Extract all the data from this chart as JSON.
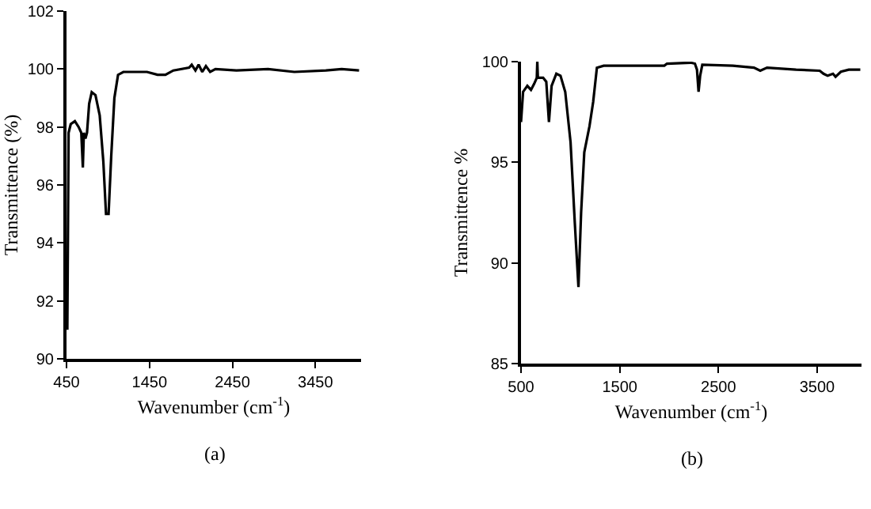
{
  "chart_data": [
    {
      "type": "line",
      "xlabel": "Wavenumber (cm$^{-1}$)",
      "ylabel": "Transmittence (%)",
      "annotations": [
        "(a)"
      ],
      "xlim": [
        450,
        4000
      ],
      "xticks": [
        450,
        1450,
        2450,
        3450
      ],
      "ylim": [
        90,
        102
      ],
      "yticks": [
        90,
        92,
        94,
        96,
        98,
        100,
        102
      ],
      "grid": false,
      "marker": "none",
      "line_style": "solid",
      "series": [
        {
          "color": "#000000",
          "x": [
            460,
            475,
            501,
            551,
            596,
            628,
            647,
            659,
            678,
            697,
            723,
            754,
            799,
            850,
            894,
            926,
            957,
            989,
            1027,
            1071,
            1135,
            1420,
            1547,
            1642,
            1737,
            1928,
            1959,
            2004,
            2042,
            2086,
            2130,
            2181,
            2245,
            2498,
            2879,
            3196,
            3576,
            3766,
            3976
          ],
          "values": [
            91,
            97.8,
            98.1,
            98.2,
            98.0,
            97.8,
            96.6,
            97.8,
            97.6,
            97.8,
            98.8,
            99.2,
            99.1,
            98.4,
            96.8,
            95.0,
            95.0,
            97.0,
            99.0,
            99.8,
            99.9,
            99.9,
            99.8,
            99.8,
            99.95,
            100.05,
            100.15,
            99.95,
            100.15,
            99.9,
            100.1,
            99.9,
            100.0,
            99.95,
            100.0,
            99.9,
            99.95,
            100.0,
            99.95
          ]
        }
      ]
    },
    {
      "type": "line",
      "xlabel": "Wavenumber (cm$^{-1}$)",
      "ylabel": "Transmittence %",
      "annotations": [
        "(b)"
      ],
      "xlim": [
        500,
        3950
      ],
      "xticks": [
        500,
        1500,
        2500,
        3500
      ],
      "ylim": [
        85,
        100
      ],
      "yticks": [
        85,
        90,
        95,
        100
      ],
      "grid": false,
      "marker": "none",
      "line_style": "solid",
      "series": [
        {
          "color": "#000000",
          "x": [
            500,
            521,
            564,
            601,
            633,
            660,
            665,
            671,
            724,
            756,
            783,
            810,
            858,
            900,
            948,
            1002,
            1045,
            1082,
            1109,
            1141,
            1194,
            1231,
            1269,
            1338,
            1685,
            1952,
            1979,
            2219,
            2262,
            2283,
            2299,
            2315,
            2337,
            2646,
            2860,
            2924,
            2993,
            3287,
            3527,
            3565,
            3607,
            3661,
            3687,
            3741,
            3821,
            3938
          ],
          "values": [
            97.0,
            98.5,
            98.8,
            98.6,
            98.9,
            99.2,
            100.0,
            99.2,
            99.2,
            99.0,
            97.0,
            98.8,
            99.4,
            99.3,
            98.5,
            96.0,
            92.0,
            88.8,
            92.5,
            95.5,
            96.8,
            98.0,
            99.7,
            99.8,
            99.8,
            99.8,
            99.9,
            99.95,
            99.9,
            99.6,
            98.5,
            99.3,
            99.85,
            99.8,
            99.7,
            99.55,
            99.7,
            99.6,
            99.55,
            99.4,
            99.3,
            99.4,
            99.25,
            99.5,
            99.6,
            99.6
          ]
        }
      ]
    }
  ]
}
